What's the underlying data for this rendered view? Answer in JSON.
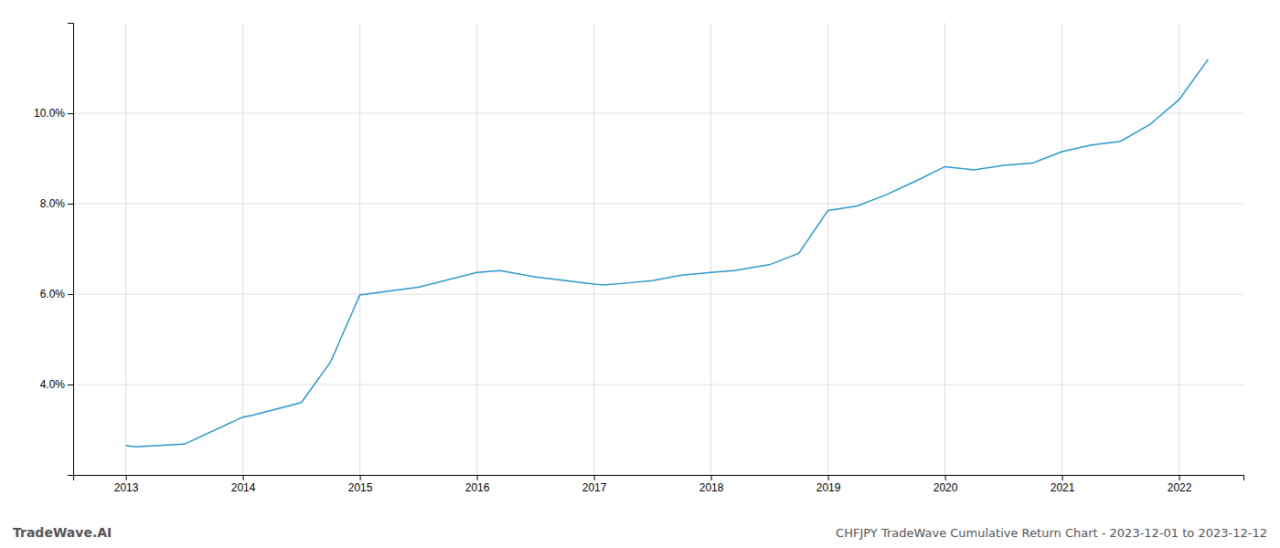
{
  "chart_data": {
    "type": "line",
    "x": [
      2013,
      2013.08,
      2013.5,
      2014.0,
      2014.08,
      2014.5,
      2014.75,
      2015.0,
      2015.08,
      2015.5,
      2016.0,
      2016.2,
      2016.5,
      2017.0,
      2017.08,
      2017.3,
      2017.5,
      2017.75,
      2018.0,
      2018.2,
      2018.5,
      2018.75,
      2019.0,
      2019.25,
      2019.5,
      2019.75,
      2020.0,
      2020.25,
      2020.5,
      2020.75,
      2021.0,
      2021.25,
      2021.5,
      2021.75,
      2022.0,
      2022.25
    ],
    "values": [
      2.65,
      2.62,
      2.68,
      3.28,
      3.32,
      3.6,
      4.5,
      5.98,
      6.01,
      6.15,
      6.48,
      6.52,
      6.38,
      6.22,
      6.2,
      6.25,
      6.3,
      6.42,
      6.48,
      6.52,
      6.65,
      6.9,
      7.85,
      7.95,
      8.2,
      8.5,
      8.82,
      8.75,
      8.85,
      8.9,
      9.15,
      9.3,
      9.38,
      9.75,
      10.3,
      11.2
    ],
    "color": "#2c98c8",
    "xlim": [
      2012.55,
      2022.55
    ],
    "xticks": [
      2013,
      2014,
      2015,
      2016,
      2017,
      2018,
      2019,
      2020,
      2021,
      2022
    ],
    "ylim": [
      2.0,
      12.0
    ],
    "yticks": [
      {
        "value": 4.0,
        "label": "4.0%"
      },
      {
        "value": 6.0,
        "label": "6.0%"
      },
      {
        "value": 8.0,
        "label": "8.0%"
      },
      {
        "value": 10.0,
        "label": "10.0%"
      }
    ],
    "grid": true,
    "annotations": [
      "TradeWave.AI",
      "CHFJPY TradeWave Cumulative Return Chart - 2023-12-01 to 2023-12-12"
    ]
  }
}
